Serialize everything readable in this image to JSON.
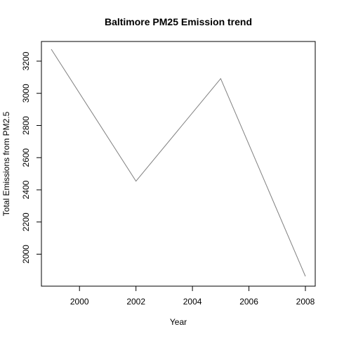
{
  "chart_data": {
    "type": "line",
    "title": "Baltimore PM25 Emission trend",
    "xlabel": "Year",
    "ylabel": "Total Emissions from PM2.5",
    "x": [
      1999,
      2002,
      2005,
      2008
    ],
    "series": [
      {
        "values": [
          3274.18,
          2453.92,
          3091.35,
          1862.28
        ]
      }
    ],
    "xlim": [
      1999,
      2008
    ],
    "ylim": [
      1862.28,
      3274.18
    ],
    "xticks": [
      2000,
      2002,
      2004,
      2006,
      2008
    ],
    "yticks": [
      2000,
      2200,
      2400,
      2600,
      2800,
      3000,
      3200
    ],
    "grid": false,
    "line_color": "#808080"
  }
}
